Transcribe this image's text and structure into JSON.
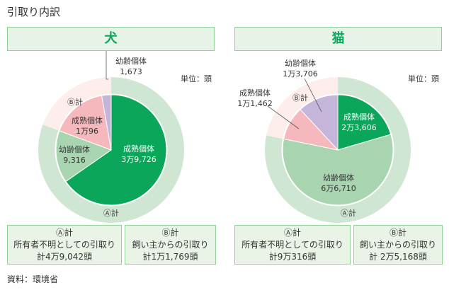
{
  "title": "引取り内訳",
  "unit": "単位：頭",
  "source": "資料：環境省",
  "colors": {
    "mature_A": "#0aa65a",
    "young_A": "#a8d5b0",
    "mature_B": "#f5b8bd",
    "young_B": "#c4b5d9",
    "ring_A": "#cfe7d2",
    "ring_B": "#fdeeec"
  },
  "chart_data": [
    {
      "type": "pie",
      "title": "犬",
      "outer": [
        {
          "name": "Ⓐ計",
          "value": 49042
        },
        {
          "name": "Ⓑ計",
          "value": 11769
        }
      ],
      "inner": [
        {
          "name": "成熟個体",
          "group": "A",
          "value": 39726,
          "label": "3万9,726"
        },
        {
          "name": "幼齢個体",
          "group": "A",
          "value": 9316,
          "label": "9,316"
        },
        {
          "name": "成熟個体",
          "group": "B",
          "value": 10096,
          "label": "1万96"
        },
        {
          "name": "幼齢個体",
          "group": "B",
          "value": 1673,
          "label": "1,673"
        }
      ],
      "ring_labels": {
        "A": "Ⓐ計",
        "B": "Ⓑ計"
      },
      "summary": [
        {
          "head": "Ⓐ計",
          "line1": "所有者不明としての引取り",
          "line2": "計4万9,042頭"
        },
        {
          "head": "Ⓑ計",
          "line1": "飼い主からの引取り",
          "line2": "計1万1,769頭"
        }
      ]
    },
    {
      "type": "pie",
      "title": "猫",
      "outer": [
        {
          "name": "Ⓐ計",
          "value": 90316
        },
        {
          "name": "Ⓑ計",
          "value": 25168
        }
      ],
      "inner": [
        {
          "name": "成熟個体",
          "group": "A",
          "value": 23606,
          "label": "2万3,606"
        },
        {
          "name": "幼齢個体",
          "group": "A",
          "value": 66710,
          "label": "6万6,710"
        },
        {
          "name": "成熟個体",
          "group": "B",
          "value": 11462,
          "label": "1万1,462"
        },
        {
          "name": "幼齢個体",
          "group": "B",
          "value": 13706,
          "label": "1万3,706"
        }
      ],
      "ring_labels": {
        "A": "Ⓐ計",
        "B": "Ⓑ計"
      },
      "summary": [
        {
          "head": "Ⓐ計",
          "line1": "所有者不明としての引取り",
          "line2": "計9万316頭"
        },
        {
          "head": "Ⓑ計",
          "line1": "飼い主からの引取り",
          "line2": "計 2万5,168頭"
        }
      ]
    }
  ]
}
